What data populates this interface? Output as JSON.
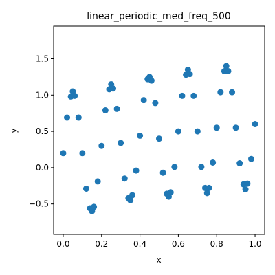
{
  "chart_data": {
    "type": "scatter",
    "title": "linear_periodic_med_freq_500",
    "xlabel": "x",
    "ylabel": "y",
    "xlim": [
      -0.05,
      1.05
    ],
    "ylim": [
      -0.92,
      1.95
    ],
    "x_ticks": [
      0.0,
      0.2,
      0.4,
      0.6,
      0.8,
      1.0
    ],
    "x_tick_labels": [
      "0.0",
      "0.2",
      "0.4",
      "0.6",
      "0.8",
      "1.0"
    ],
    "y_ticks": [
      -0.5,
      0.0,
      0.5,
      1.0,
      1.5
    ],
    "y_tick_labels": [
      "−0.5",
      "0.0",
      "0.5",
      "1.0",
      "1.5"
    ],
    "grid": false,
    "legend": "none",
    "marker_color": "#1f77b4",
    "n_points": 500,
    "function": "y = 1.0*x + 0.8*sin(2*pi*5*x) + 0.2",
    "series": [
      {
        "x": [
          0.0,
          0.02,
          0.04,
          0.05,
          0.06,
          0.08,
          0.1,
          0.12,
          0.14,
          0.15,
          0.16,
          0.18,
          0.2,
          0.22,
          0.24,
          0.25,
          0.26,
          0.28,
          0.3,
          0.32,
          0.34,
          0.35,
          0.36,
          0.38,
          0.4,
          0.42,
          0.44,
          0.45,
          0.46,
          0.48,
          0.5,
          0.52,
          0.54,
          0.55,
          0.56,
          0.58,
          0.6,
          0.62,
          0.64,
          0.65,
          0.66,
          0.68,
          0.7,
          0.72,
          0.74,
          0.75,
          0.76,
          0.78,
          0.8,
          0.82,
          0.84,
          0.85,
          0.86,
          0.88,
          0.9,
          0.92,
          0.94,
          0.95,
          0.96,
          0.98,
          1.0
        ],
        "y": [
          0.2,
          0.69,
          0.98,
          1.05,
          0.99,
          0.69,
          0.2,
          -0.29,
          -0.56,
          -0.6,
          -0.54,
          -0.19,
          0.3,
          0.79,
          1.08,
          1.15,
          1.09,
          0.81,
          0.34,
          -0.15,
          -0.42,
          -0.45,
          -0.38,
          -0.04,
          0.44,
          0.93,
          1.22,
          1.25,
          1.2,
          0.89,
          0.4,
          -0.07,
          -0.36,
          -0.4,
          -0.34,
          0.01,
          0.5,
          0.99,
          1.28,
          1.35,
          1.29,
          0.99,
          0.5,
          0.01,
          -0.28,
          -0.35,
          -0.28,
          0.07,
          0.55,
          1.04,
          1.33,
          1.4,
          1.33,
          1.04,
          0.55,
          0.06,
          -0.23,
          -0.3,
          -0.22,
          0.12,
          0.6
        ]
      }
    ]
  }
}
